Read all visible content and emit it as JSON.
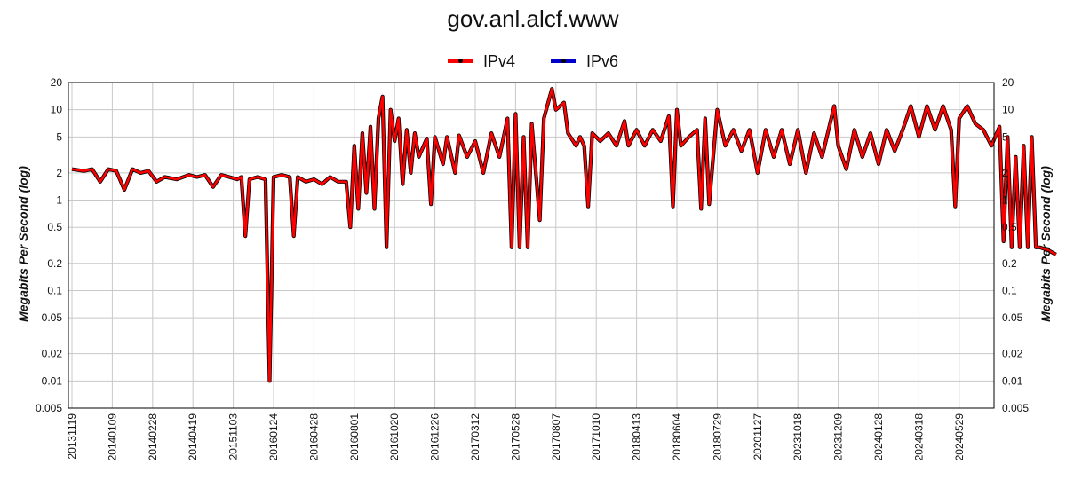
{
  "chart_data": {
    "type": "line",
    "title": "gov.anl.alcf.www",
    "ylabel": "Megabits Per Second (log)",
    "ylabel_right": "Megabits Per Second (log)",
    "y_scale": "log",
    "ylim": [
      0.005,
      20
    ],
    "y_ticks": [
      {
        "value": 20,
        "label": "20"
      },
      {
        "value": 10,
        "label": "10"
      },
      {
        "value": 5,
        "label": "5"
      },
      {
        "value": 2,
        "label": "2"
      },
      {
        "value": 1,
        "label": "1"
      },
      {
        "value": 0.5,
        "label": "0.5"
      },
      {
        "value": 0.2,
        "label": "0.2"
      },
      {
        "value": 0.1,
        "label": "0.1"
      },
      {
        "value": 0.05,
        "label": "0.05"
      },
      {
        "value": 0.02,
        "label": "0.02"
      },
      {
        "value": 0.01,
        "label": "0.01"
      },
      {
        "value": 0.005,
        "label": "0.005"
      }
    ],
    "x_tick_labels": [
      "20131119",
      "20140109",
      "20140228",
      "20140419",
      "20151103",
      "20160124",
      "20160428",
      "20160801",
      "20161020",
      "20161226",
      "20170312",
      "20170528",
      "20170807",
      "20171010",
      "20180413",
      "20180604",
      "20180729",
      "20201127",
      "20231018",
      "20231209",
      "20240128",
      "20240318",
      "20240529"
    ],
    "grid": true,
    "legend_position": "top-center",
    "colors": {
      "IPv4": "#ff0000",
      "IPv6": "#0000cc"
    },
    "series": [
      {
        "name": "IPv4",
        "points": [
          [
            0,
            2.2
          ],
          [
            0.3,
            2.1
          ],
          [
            0.5,
            2.2
          ],
          [
            0.7,
            1.6
          ],
          [
            0.9,
            2.2
          ],
          [
            1.1,
            2.1
          ],
          [
            1.3,
            1.3
          ],
          [
            1.5,
            2.2
          ],
          [
            1.7,
            2.0
          ],
          [
            1.9,
            2.1
          ],
          [
            2.1,
            1.6
          ],
          [
            2.3,
            1.8
          ],
          [
            2.6,
            1.7
          ],
          [
            2.9,
            1.9
          ],
          [
            3.1,
            1.8
          ],
          [
            3.3,
            1.9
          ],
          [
            3.5,
            1.4
          ],
          [
            3.7,
            1.9
          ],
          [
            3.9,
            1.8
          ],
          [
            4.1,
            1.7
          ],
          [
            4.2,
            1.8
          ],
          [
            4.3,
            0.4
          ],
          [
            4.4,
            1.7
          ],
          [
            4.6,
            1.8
          ],
          [
            4.8,
            1.7
          ],
          [
            4.9,
            0.01
          ],
          [
            5.0,
            1.8
          ],
          [
            5.2,
            1.9
          ],
          [
            5.4,
            1.8
          ],
          [
            5.5,
            0.4
          ],
          [
            5.6,
            1.8
          ],
          [
            5.8,
            1.6
          ],
          [
            6.0,
            1.7
          ],
          [
            6.2,
            1.5
          ],
          [
            6.4,
            1.8
          ],
          [
            6.6,
            1.6
          ],
          [
            6.8,
            1.6
          ],
          [
            6.9,
            0.5
          ],
          [
            7.0,
            4.0
          ],
          [
            7.1,
            0.8
          ],
          [
            7.2,
            5.5
          ],
          [
            7.3,
            1.2
          ],
          [
            7.4,
            6.5
          ],
          [
            7.5,
            0.8
          ],
          [
            7.6,
            8.0
          ],
          [
            7.7,
            14.0
          ],
          [
            7.8,
            0.3
          ],
          [
            7.9,
            10.0
          ],
          [
            8.0,
            4.5
          ],
          [
            8.1,
            8.0
          ],
          [
            8.2,
            1.5
          ],
          [
            8.3,
            6.0
          ],
          [
            8.4,
            2.0
          ],
          [
            8.5,
            5.5
          ],
          [
            8.6,
            3.0
          ],
          [
            8.8,
            4.8
          ],
          [
            8.9,
            0.9
          ],
          [
            9.0,
            5.0
          ],
          [
            9.2,
            2.5
          ],
          [
            9.3,
            5.0
          ],
          [
            9.5,
            2.0
          ],
          [
            9.6,
            5.2
          ],
          [
            9.8,
            3.0
          ],
          [
            10.0,
            4.5
          ],
          [
            10.2,
            2.0
          ],
          [
            10.4,
            5.5
          ],
          [
            10.6,
            3.0
          ],
          [
            10.8,
            8.0
          ],
          [
            10.9,
            0.3
          ],
          [
            11.0,
            9.0
          ],
          [
            11.1,
            0.3
          ],
          [
            11.2,
            5.0
          ],
          [
            11.3,
            0.3
          ],
          [
            11.4,
            7.0
          ],
          [
            11.6,
            0.6
          ],
          [
            11.7,
            8.0
          ],
          [
            11.9,
            17.0
          ],
          [
            12.0,
            10.0
          ],
          [
            12.2,
            12.0
          ],
          [
            12.3,
            5.5
          ],
          [
            12.5,
            4.0
          ],
          [
            12.6,
            5.0
          ],
          [
            12.7,
            4.0
          ],
          [
            12.8,
            0.85
          ],
          [
            12.9,
            5.5
          ],
          [
            13.1,
            4.5
          ],
          [
            13.3,
            5.5
          ],
          [
            13.5,
            4.0
          ],
          [
            13.7,
            7.5
          ],
          [
            13.8,
            4.0
          ],
          [
            14.0,
            6.0
          ],
          [
            14.2,
            4.0
          ],
          [
            14.4,
            6.0
          ],
          [
            14.6,
            4.5
          ],
          [
            14.8,
            8.5
          ],
          [
            14.9,
            0.85
          ],
          [
            15.0,
            10.0
          ],
          [
            15.1,
            4.0
          ],
          [
            15.3,
            5.0
          ],
          [
            15.5,
            6.0
          ],
          [
            15.6,
            0.8
          ],
          [
            15.7,
            8.0
          ],
          [
            15.8,
            0.9
          ],
          [
            16.0,
            10.0
          ],
          [
            16.2,
            4.0
          ],
          [
            16.4,
            6.0
          ],
          [
            16.6,
            3.5
          ],
          [
            16.8,
            6.0
          ],
          [
            17.0,
            2.0
          ],
          [
            17.2,
            6.0
          ],
          [
            17.4,
            3.0
          ],
          [
            17.6,
            6.0
          ],
          [
            17.8,
            2.5
          ],
          [
            18.0,
            6.0
          ],
          [
            18.2,
            2.0
          ],
          [
            18.4,
            5.5
          ],
          [
            18.6,
            3.0
          ],
          [
            18.9,
            11.0
          ],
          [
            19.0,
            4.0
          ],
          [
            19.2,
            2.2
          ],
          [
            19.4,
            6.0
          ],
          [
            19.6,
            3.0
          ],
          [
            19.8,
            5.5
          ],
          [
            20.0,
            2.5
          ],
          [
            20.2,
            6.0
          ],
          [
            20.4,
            3.5
          ],
          [
            20.6,
            6.0
          ],
          [
            20.8,
            11.0
          ],
          [
            21.0,
            5.0
          ],
          [
            21.2,
            11.0
          ],
          [
            21.4,
            6.0
          ],
          [
            21.6,
            11.0
          ],
          [
            21.8,
            6.0
          ],
          [
            21.9,
            0.85
          ],
          [
            22.0,
            8.0
          ],
          [
            22.2,
            11.0
          ],
          [
            22.4,
            7.0
          ],
          [
            22.6,
            6.0
          ],
          [
            22.8,
            4.0
          ],
          [
            23.0,
            6.5
          ],
          [
            23.1,
            0.35
          ],
          [
            23.2,
            5.0
          ],
          [
            23.3,
            0.3
          ],
          [
            23.4,
            3.0
          ],
          [
            23.5,
            0.3
          ],
          [
            23.6,
            4.0
          ],
          [
            23.7,
            0.3
          ],
          [
            23.8,
            5.0
          ],
          [
            23.9,
            0.3
          ],
          [
            24.0,
            0.3
          ],
          [
            24.2,
            0.28
          ],
          [
            24.4,
            0.25
          ],
          [
            26.4,
            2.5
          ],
          [
            26.5,
            1.2
          ],
          [
            26.6,
            2.3
          ],
          [
            26.8,
            1.8
          ],
          [
            27.0,
            2.3
          ],
          [
            27.1,
            1.5
          ],
          [
            27.2,
            2.8
          ],
          [
            27.4,
            2.0
          ],
          [
            27.6,
            2.5
          ],
          [
            27.7,
            0.9
          ],
          [
            27.8,
            1.5
          ],
          [
            28.0,
            1.3
          ],
          [
            28.2,
            1.5
          ],
          [
            28.4,
            1.0
          ],
          [
            28.6,
            1.3
          ],
          [
            28.7,
            0.8
          ],
          [
            28.8,
            2.0
          ],
          [
            29.0,
            1.5
          ],
          [
            29.2,
            2.5
          ],
          [
            29.3,
            0.85
          ],
          [
            29.4,
            2.3
          ],
          [
            29.6,
            1.8
          ],
          [
            29.8,
            2.5
          ],
          [
            30.0,
            1.5
          ],
          [
            30.2,
            2.5
          ],
          [
            30.4,
            1.8
          ],
          [
            30.6,
            2.5
          ],
          [
            30.8,
            2.0
          ],
          [
            31.0,
            2.5
          ],
          [
            31.2,
            2.0
          ],
          [
            31.4,
            2.3
          ],
          [
            31.6,
            2.0
          ],
          [
            31.8,
            2.3
          ],
          [
            32.0,
            2.0
          ],
          [
            32.2,
            1.0
          ],
          [
            32.3,
            0.28
          ],
          [
            32.4,
            0.17
          ],
          [
            32.5,
            0.17
          ],
          [
            32.6,
            2.0
          ],
          [
            32.8,
            2.3
          ],
          [
            33.0,
            2.4
          ],
          [
            33.2,
            2.0
          ],
          [
            33.4,
            2.5
          ],
          [
            33.5,
            0.28
          ],
          [
            33.6,
            2.5
          ],
          [
            33.8,
            2.3
          ],
          [
            34.0,
            2.8
          ],
          [
            34.2,
            3.0
          ],
          [
            34.4,
            2.6
          ],
          [
            34.6,
            3.3
          ],
          [
            34.7,
            0.4
          ],
          [
            34.8,
            3.2
          ],
          [
            35.0,
            3.3
          ],
          [
            35.1,
            0.25
          ],
          [
            35.2,
            3.3
          ],
          [
            35.4,
            3.0
          ],
          [
            35.6,
            3.5
          ],
          [
            35.7,
            0.4
          ],
          [
            35.8,
            3.2
          ],
          [
            36.0,
            3.5
          ],
          [
            36.2,
            3.0
          ],
          [
            36.4,
            3.6
          ],
          [
            36.6,
            2.5
          ],
          [
            36.8,
            3.6
          ],
          [
            37.0,
            2.4
          ],
          [
            37.2,
            3.8
          ],
          [
            37.3,
            0.6
          ],
          [
            37.4,
            3.2
          ],
          [
            37.6,
            2.5
          ],
          [
            37.8,
            3.5
          ],
          [
            38.0,
            2.5
          ],
          [
            38.2,
            3.5
          ],
          [
            38.4,
            3.5
          ],
          [
            38.6,
            2.0
          ],
          [
            38.8,
            2.2
          ],
          [
            38.9,
            1.1
          ],
          [
            39.0,
            1.6
          ],
          [
            39.2,
            2.0
          ],
          [
            39.4,
            1.5
          ],
          [
            39.6,
            2.0
          ],
          [
            39.8,
            1.6
          ],
          [
            39.9,
            0.25
          ],
          [
            40.0,
            2.0
          ],
          [
            40.1,
            0.3
          ],
          [
            40.2,
            2.1
          ],
          [
            40.4,
            1.3
          ],
          [
            40.5,
            0.6
          ],
          [
            40.6,
            1.8
          ],
          [
            40.7,
            0.5
          ],
          [
            40.8,
            2.0
          ],
          [
            40.9,
            0.25
          ],
          [
            41.0,
            2.1
          ],
          [
            41.2,
            1.9
          ],
          [
            41.4,
            2.1
          ],
          [
            41.5,
            8.5
          ],
          [
            41.6,
            3.0
          ],
          [
            41.7,
            6.0
          ],
          [
            41.8,
            3.5
          ],
          [
            42.0,
            13.5
          ],
          [
            42.1,
            2.0
          ],
          [
            42.2,
            6.0
          ],
          [
            42.4,
            3.0
          ],
          [
            42.6,
            8.0
          ],
          [
            42.8,
            2.5
          ],
          [
            43.0,
            6.0
          ],
          [
            43.1,
            1.3
          ],
          [
            43.2,
            7.0
          ],
          [
            43.4,
            4.0
          ],
          [
            43.6,
            9.5
          ],
          [
            43.8,
            2.5
          ],
          [
            44.0,
            6.5
          ],
          [
            44.2,
            2.2
          ],
          [
            44.4,
            3.5
          ]
        ]
      },
      {
        "name": "IPv6",
        "points": []
      }
    ]
  }
}
